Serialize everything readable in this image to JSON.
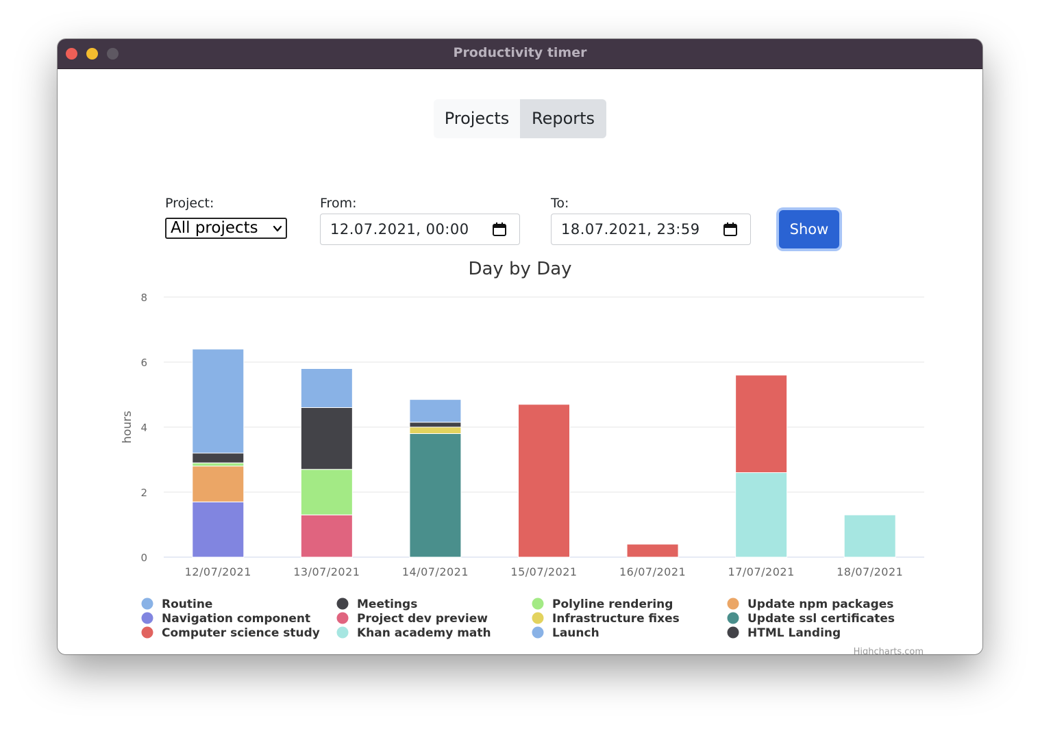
{
  "window": {
    "title": "Productivity timer"
  },
  "tabs": [
    {
      "label": "Projects",
      "active": false
    },
    {
      "label": "Reports",
      "active": true
    }
  ],
  "filters": {
    "project_label": "Project:",
    "project_value": "All projects",
    "from_label": "From:",
    "from_value": "12.07.2021, 00:00",
    "to_label": "To:",
    "to_value": "18.07.2021, 23:59",
    "show_label": "Show"
  },
  "credits": "Highcharts.com",
  "chart_data": {
    "type": "bar",
    "stacked": true,
    "title": "Day by Day",
    "ylabel": "hours",
    "ylim": [
      0,
      8
    ],
    "yticks": [
      0,
      2,
      4,
      6,
      8
    ],
    "grid": true,
    "legend_placement": "bottom",
    "categories": [
      "12/07/2021",
      "13/07/2021",
      "14/07/2021",
      "15/07/2021",
      "16/07/2021",
      "17/07/2021",
      "18/07/2021"
    ],
    "series": [
      {
        "name": "Routine",
        "color": "#89b2e6",
        "values": [
          3.2,
          1.2,
          0.7,
          0,
          0,
          0,
          0
        ]
      },
      {
        "name": "Meetings",
        "color": "#434348",
        "values": [
          0,
          1.9,
          0,
          0,
          0,
          0,
          0
        ]
      },
      {
        "name": "Polyline rendering",
        "color": "#a3ea85",
        "values": [
          0.1,
          1.4,
          0,
          0,
          0,
          0,
          0
        ]
      },
      {
        "name": "Update npm packages",
        "color": "#eba666",
        "values": [
          1.1,
          0,
          0,
          0,
          0,
          0,
          0
        ]
      },
      {
        "name": "Navigation component",
        "color": "#8185e0",
        "values": [
          1.7,
          0,
          0,
          0,
          0,
          0,
          0
        ]
      },
      {
        "name": "Project dev preview",
        "color": "#e0647f",
        "values": [
          0,
          1.3,
          0,
          0,
          0,
          0,
          0
        ]
      },
      {
        "name": "Infrastructure fixes",
        "color": "#e3d35e",
        "values": [
          0,
          0,
          0.2,
          0,
          0,
          0,
          0
        ]
      },
      {
        "name": "Update ssl certificates",
        "color": "#4a8f8c",
        "values": [
          0,
          0,
          3.8,
          0,
          0,
          0,
          0
        ]
      },
      {
        "name": "Computer science study",
        "color": "#e1635f",
        "values": [
          0,
          0,
          0,
          4.7,
          0.4,
          3.0,
          0
        ]
      },
      {
        "name": "Khan academy math",
        "color": "#a6e6e1",
        "values": [
          0,
          0,
          0,
          0,
          0,
          2.6,
          1.3
        ]
      },
      {
        "name": "Launch",
        "color": "#89b2e6",
        "values": [
          0,
          0,
          0,
          0,
          0,
          0,
          0
        ]
      },
      {
        "name": "HTML Landing",
        "color": "#434348",
        "values": [
          0.3,
          0,
          0.15,
          0,
          0,
          0,
          0
        ]
      }
    ],
    "stack_order": [
      [
        "Navigation component",
        "Update npm packages",
        "Polyline rendering",
        "HTML Landing",
        "Routine"
      ],
      [
        "Project dev preview",
        "Polyline rendering",
        "Meetings",
        "Routine"
      ],
      [
        "Update ssl certificates",
        "Infrastructure fixes",
        "HTML Landing",
        "Routine"
      ],
      [
        "Computer science study"
      ],
      [
        "Computer science study"
      ],
      [
        "Khan academy math",
        "Computer science study"
      ],
      [
        "Khan academy math"
      ]
    ]
  }
}
